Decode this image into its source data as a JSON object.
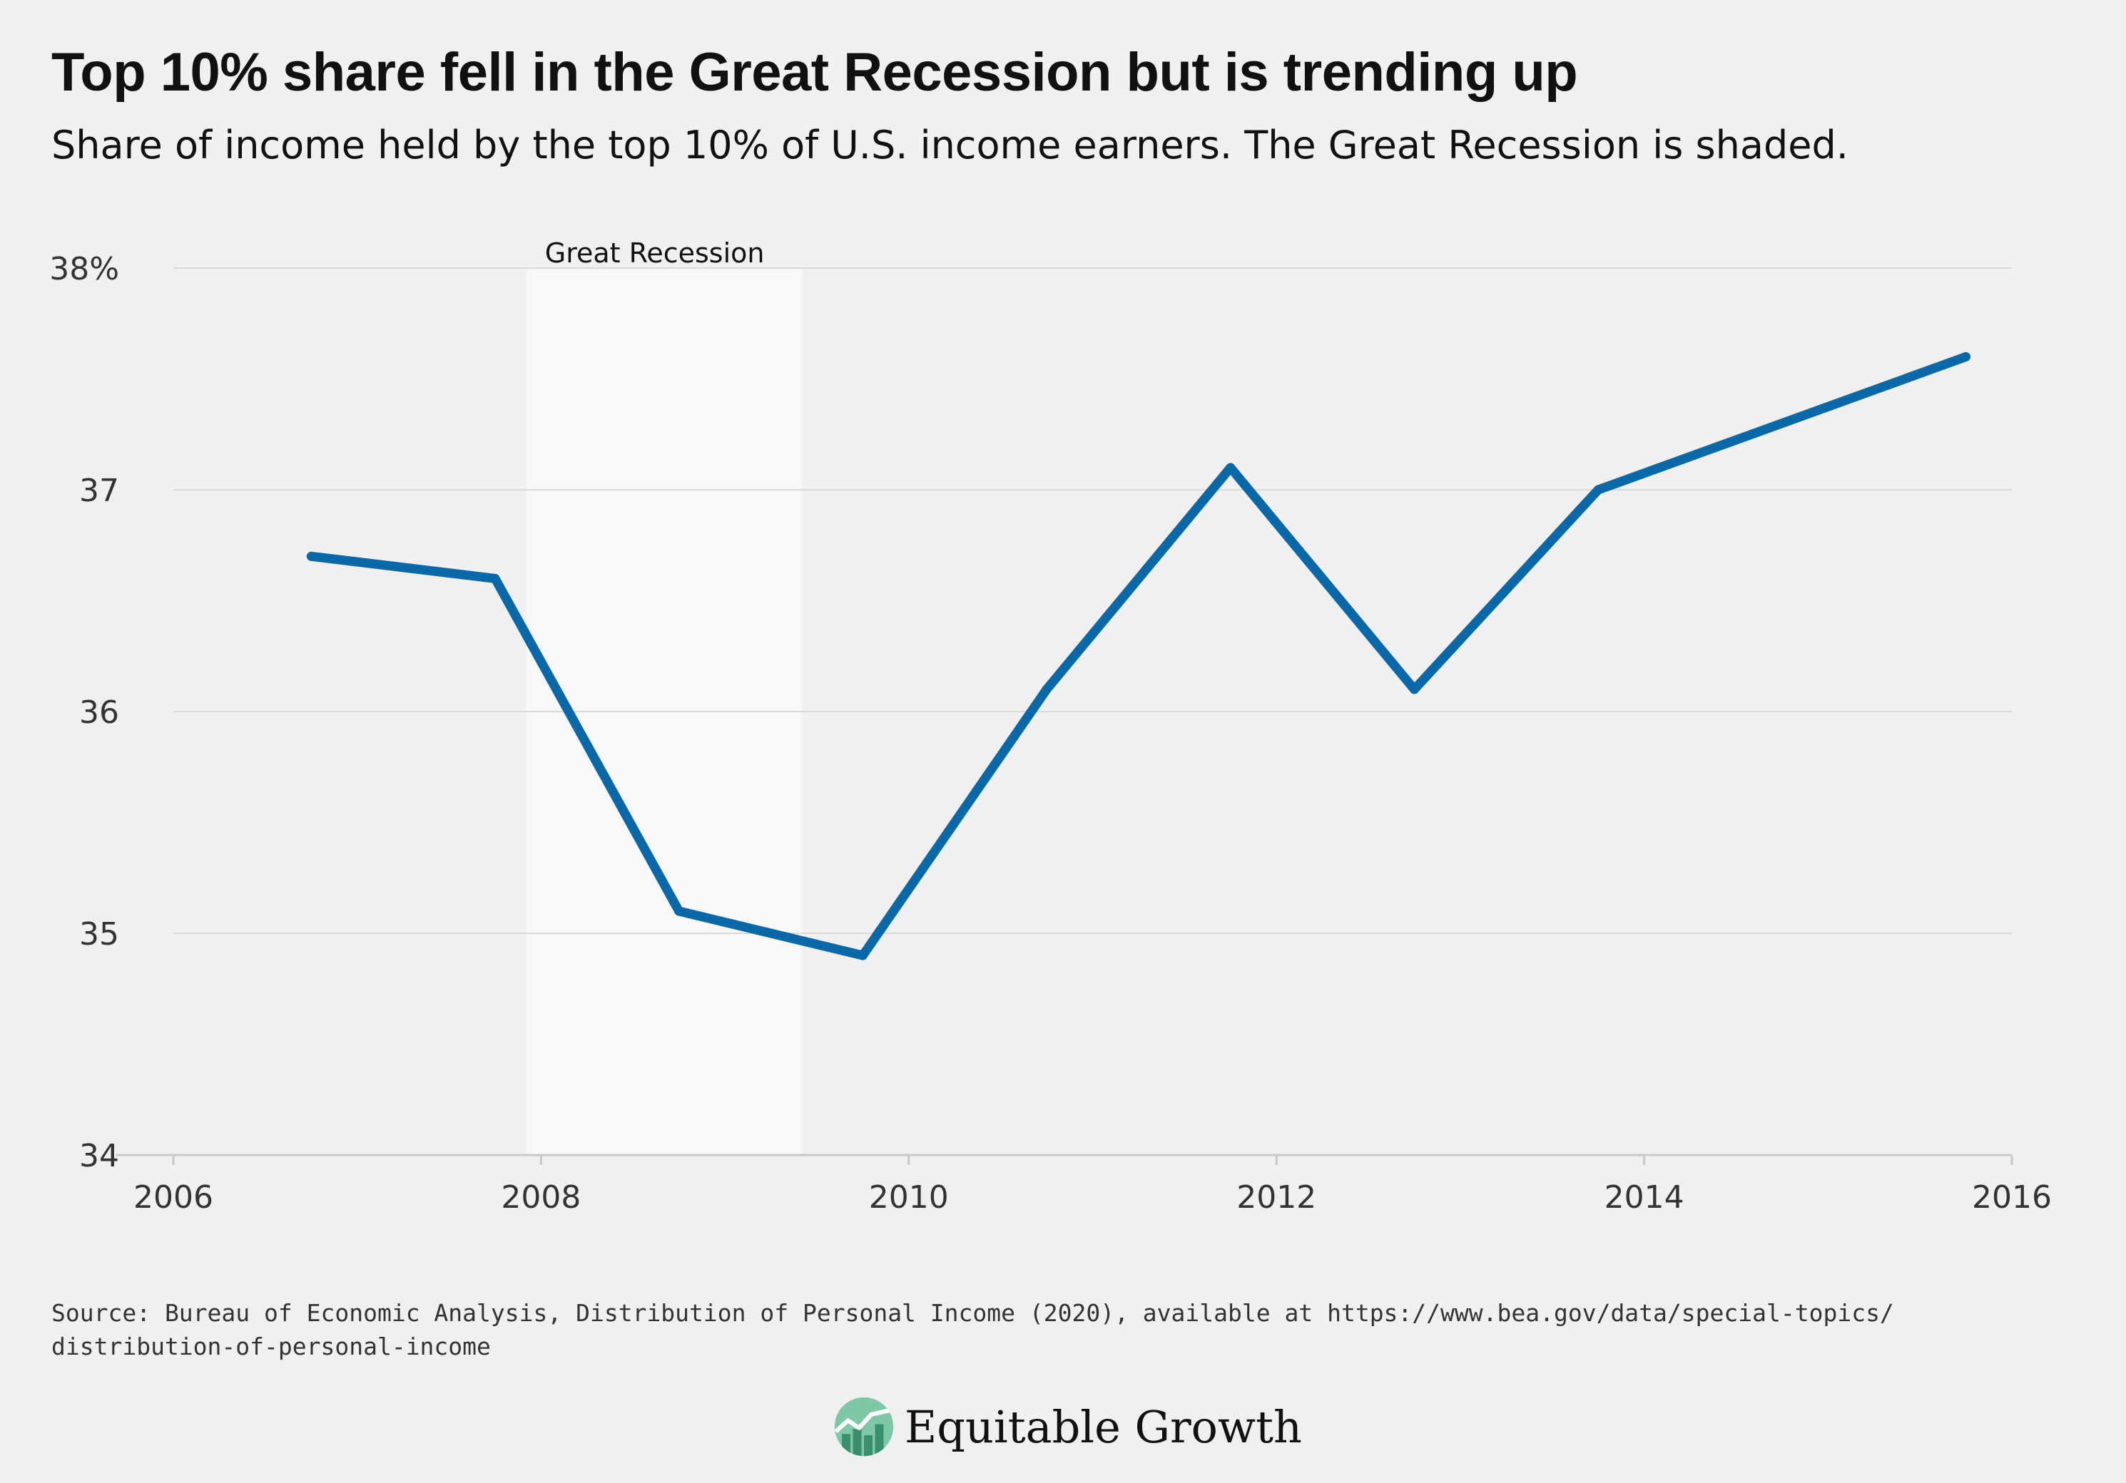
{
  "title": "Top 10% share fell in the Great Recession but is trending up",
  "subtitle": "Share of income held by the top 10% of U.S. income earners. The Great Recession is shaded.",
  "source_lines": [
    "Source: Bureau of Economic Analysis, Distribution of Personal Income (2020), available at https://www.bea.gov/data/special-topics/",
    "distribution-of-personal-income"
  ],
  "brand": {
    "name": "Equitable Growth",
    "logo_icon": "equitable-growth-logo-icon"
  },
  "colors": {
    "background": "#f0f0f0",
    "line": "#0868a8",
    "gridline": "#d9d9d9",
    "axis": "#c8c8c8",
    "recession_band": "#f8f8f8",
    "logo_light": "#7ec8a8",
    "logo_dark": "#3a8f6e"
  },
  "chart_data": {
    "type": "line",
    "title": "",
    "xlabel": "",
    "ylabel": "",
    "xlim": [
      2006,
      2016
    ],
    "ylim": [
      34,
      38
    ],
    "x_ticks": [
      2006,
      2008,
      2010,
      2012,
      2014,
      2016
    ],
    "x_tick_labels": [
      "2006",
      "2008",
      "2010",
      "2012",
      "2014",
      "2016"
    ],
    "y_ticks": [
      34,
      35,
      36,
      37,
      38
    ],
    "y_tick_labels": [
      "34",
      "35",
      "36",
      "37",
      "38%"
    ],
    "grid": "horizontal",
    "legend": "none",
    "shaded_regions": [
      {
        "label": "Great Recession",
        "x_start": 2007.92,
        "x_end": 2009.42
      }
    ],
    "series": [
      {
        "points": [
          {
            "x": 2006.75,
            "y": 36.7
          },
          {
            "x": 2007.75,
            "y": 36.6
          },
          {
            "x": 2008.75,
            "y": 35.1
          },
          {
            "x": 2009.75,
            "y": 34.9
          },
          {
            "x": 2010.75,
            "y": 36.1
          },
          {
            "x": 2011.75,
            "y": 37.1
          },
          {
            "x": 2012.75,
            "y": 36.1
          },
          {
            "x": 2013.75,
            "y": 37.0
          },
          {
            "x": 2015.75,
            "y": 37.6
          }
        ]
      }
    ]
  }
}
